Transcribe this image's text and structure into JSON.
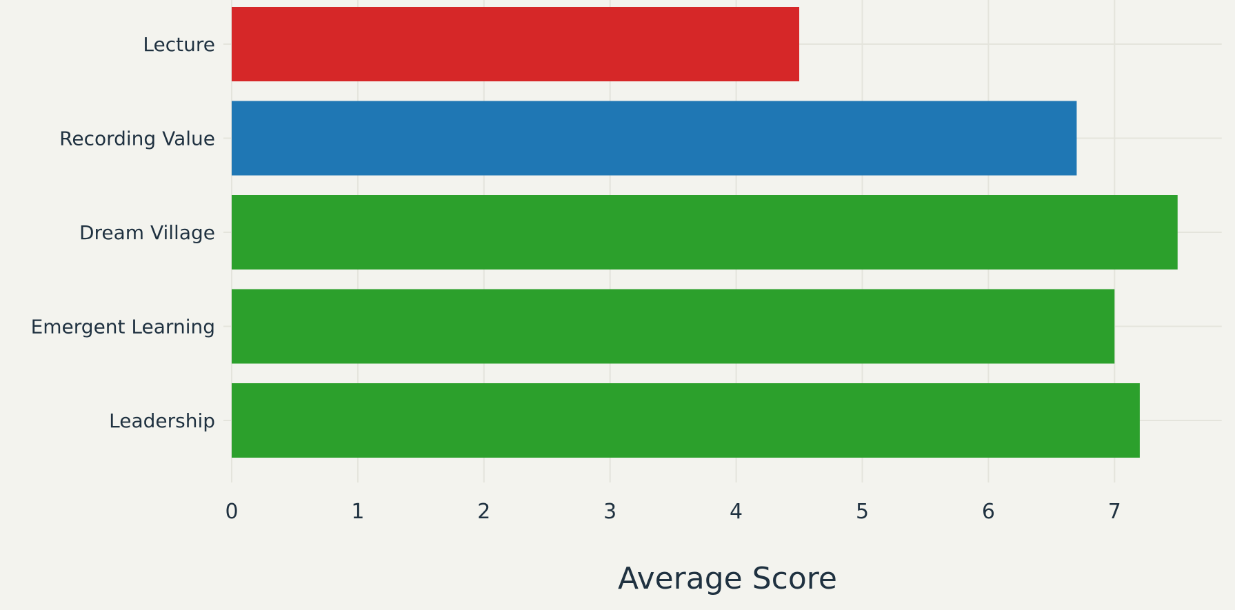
{
  "chart_data": {
    "type": "bar",
    "orientation": "horizontal",
    "categories": [
      "Lecture",
      "Recording Value",
      "Dream Village",
      "Emergent Learning",
      "Leadership"
    ],
    "values": [
      4.5,
      6.7,
      7.5,
      7.0,
      7.2
    ],
    "colors": [
      "#d62728",
      "#1f77b4",
      "#2ca02c",
      "#2ca02c",
      "#2ca02c"
    ],
    "xlabel": "Average Score",
    "ylabel": "",
    "title": "",
    "xlim": [
      0,
      7.85
    ],
    "xticks": [
      0,
      1,
      2,
      3,
      4,
      5,
      6,
      7
    ],
    "grid": true,
    "legend": "none"
  },
  "theme": {
    "background": "#f3f3ee",
    "grid_color": "#e4e4dc",
    "text_color": "#1f3140"
  }
}
